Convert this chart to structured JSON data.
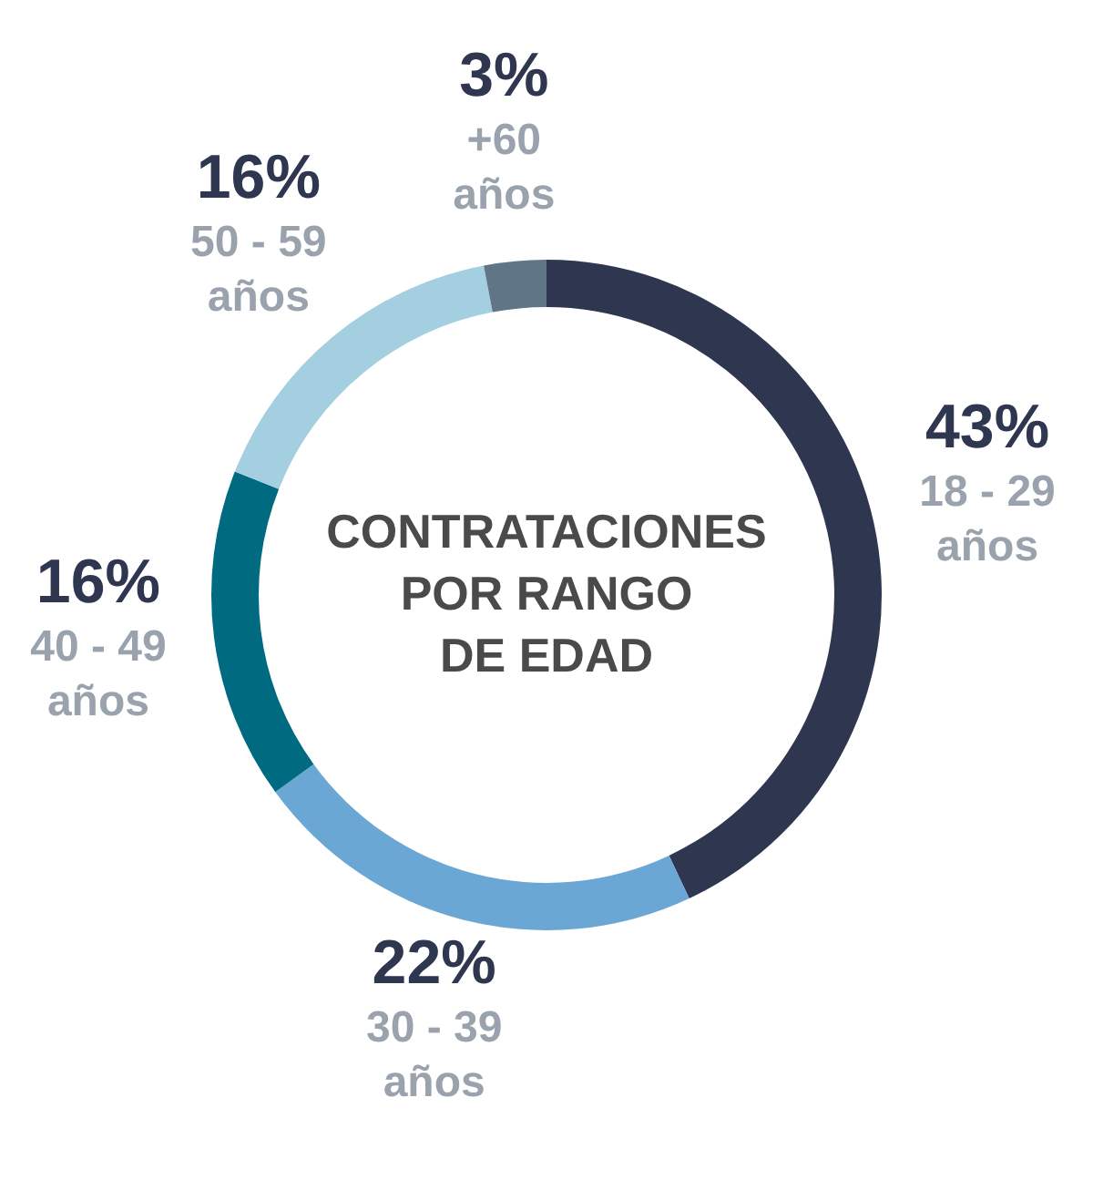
{
  "chart_data": {
    "type": "donut",
    "title": "CONTRATACIONES POR RANGO DE EDAD",
    "categories": [
      "18 - 29 años",
      "30 - 39 años",
      "40 - 49 años",
      "50 - 59 años",
      "+60 años"
    ],
    "values": [
      43,
      22,
      16,
      16,
      3
    ],
    "value_labels": [
      "43%",
      "22%",
      "16%",
      "16%",
      "3%"
    ],
    "colors": [
      "#2e3650",
      "#6aa7d4",
      "#006b80",
      "#a3cfe0",
      "#607585"
    ]
  }
}
